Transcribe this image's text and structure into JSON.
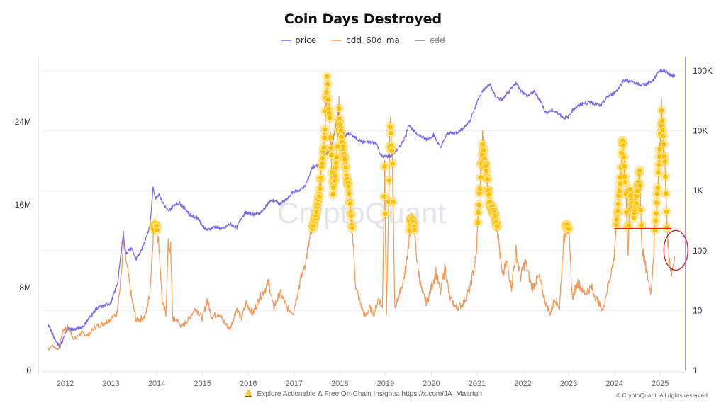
{
  "header": {
    "title": "Coin Days Destroyed"
  },
  "legend": [
    {
      "label": "price",
      "color": "#7b68ee",
      "enabled": true
    },
    {
      "label": "cdd_60d_ma",
      "color": "#f0995a",
      "enabled": true
    },
    {
      "label": "cdd",
      "color": "#999999",
      "enabled": false
    }
  ],
  "watermark": "CryptoQuant",
  "footer": {
    "cta_text": "Explore Actionable & Free On-Chain Insights:",
    "cta_link": "https://x.com/JA_Maartun",
    "copyright": "© CryptoQuant. All rights reserved"
  },
  "chart_data": {
    "type": "line",
    "title": "Coin Days Destroyed",
    "xlabel": "",
    "x_ticks": [
      "2012",
      "2013",
      "2014",
      "2015",
      "2016",
      "2017",
      "2018",
      "2019",
      "2020",
      "2021",
      "2022",
      "2023",
      "2024",
      "2025"
    ],
    "x_range": [
      2011.5,
      2025.4
    ],
    "y_left": {
      "label": "cdd_60d_ma",
      "ticks": [
        "0",
        "8M",
        "16M",
        "24M"
      ],
      "tick_values": [
        0,
        8000000,
        16000000,
        24000000
      ],
      "range": [
        0,
        28800000
      ],
      "scale": "linear"
    },
    "y_right": {
      "label": "price",
      "ticks": [
        "1",
        "10",
        "100",
        "1K",
        "10K",
        "100K"
      ],
      "tick_values": [
        1,
        10,
        100,
        1000,
        10000,
        100000
      ],
      "range": [
        1,
        100000
      ],
      "scale": "log"
    },
    "grid": true,
    "legend_position": "top-center",
    "series": [
      {
        "name": "price",
        "axis": "right",
        "color": "#7b68ee",
        "points": [
          [
            2011.62,
            6
          ],
          [
            2011.7,
            4.5
          ],
          [
            2011.8,
            3
          ],
          [
            2011.88,
            2.5
          ],
          [
            2011.95,
            3.2
          ],
          [
            2012.05,
            5
          ],
          [
            2012.2,
            4.8
          ],
          [
            2012.4,
            5.5
          ],
          [
            2012.55,
            8
          ],
          [
            2012.7,
            11
          ],
          [
            2012.85,
            12
          ],
          [
            2013.0,
            13.5
          ],
          [
            2013.15,
            30
          ],
          [
            2013.27,
            200
          ],
          [
            2013.32,
            90
          ],
          [
            2013.45,
            110
          ],
          [
            2013.55,
            70
          ],
          [
            2013.7,
            120
          ],
          [
            2013.85,
            250
          ],
          [
            2013.92,
            1100
          ],
          [
            2013.98,
            750
          ],
          [
            2014.05,
            900
          ],
          [
            2014.12,
            650
          ],
          [
            2014.25,
            450
          ],
          [
            2014.4,
            600
          ],
          [
            2014.5,
            620
          ],
          [
            2014.62,
            500
          ],
          [
            2014.75,
            380
          ],
          [
            2014.9,
            350
          ],
          [
            2015.0,
            260
          ],
          [
            2015.1,
            220
          ],
          [
            2015.25,
            250
          ],
          [
            2015.45,
            230
          ],
          [
            2015.6,
            280
          ],
          [
            2015.75,
            240
          ],
          [
            2015.85,
            360
          ],
          [
            2015.95,
            430
          ],
          [
            2016.1,
            400
          ],
          [
            2016.3,
            440
          ],
          [
            2016.45,
            650
          ],
          [
            2016.55,
            680
          ],
          [
            2016.7,
            600
          ],
          [
            2016.85,
            720
          ],
          [
            2016.98,
            960
          ],
          [
            2017.1,
            1000
          ],
          [
            2017.25,
            1200
          ],
          [
            2017.4,
            2500
          ],
          [
            2017.55,
            2600
          ],
          [
            2017.65,
            4300
          ],
          [
            2017.75,
            4200
          ],
          [
            2017.85,
            7000
          ],
          [
            2017.96,
            19000
          ],
          [
            2018.05,
            11000
          ],
          [
            2018.1,
            8000
          ],
          [
            2018.2,
            9000
          ],
          [
            2018.35,
            7500
          ],
          [
            2018.5,
            6500
          ],
          [
            2018.65,
            6400
          ],
          [
            2018.8,
            6300
          ],
          [
            2018.9,
            3800
          ],
          [
            2018.98,
            3700
          ],
          [
            2019.1,
            3800
          ],
          [
            2019.3,
            5200
          ],
          [
            2019.45,
            8500
          ],
          [
            2019.5,
            13000
          ],
          [
            2019.6,
            10000
          ],
          [
            2019.75,
            8200
          ],
          [
            2019.9,
            7200
          ],
          [
            2020.05,
            8500
          ],
          [
            2020.2,
            5200
          ],
          [
            2020.35,
            9000
          ],
          [
            2020.55,
            9300
          ],
          [
            2020.7,
            11000
          ],
          [
            2020.85,
            15000
          ],
          [
            2021.0,
            30000
          ],
          [
            2021.1,
            45000
          ],
          [
            2021.28,
            60000
          ],
          [
            2021.4,
            37000
          ],
          [
            2021.55,
            33000
          ],
          [
            2021.7,
            45000
          ],
          [
            2021.85,
            63000
          ],
          [
            2021.96,
            47000
          ],
          [
            2022.1,
            38000
          ],
          [
            2022.25,
            45000
          ],
          [
            2022.4,
            30000
          ],
          [
            2022.5,
            20000
          ],
          [
            2022.65,
            22000
          ],
          [
            2022.8,
            19000
          ],
          [
            2022.9,
            16500
          ],
          [
            2022.98,
            16600
          ],
          [
            2023.1,
            23000
          ],
          [
            2023.28,
            28000
          ],
          [
            2023.5,
            30000
          ],
          [
            2023.7,
            26000
          ],
          [
            2023.85,
            37000
          ],
          [
            2023.98,
            42000
          ],
          [
            2024.1,
            52000
          ],
          [
            2024.2,
            70000
          ],
          [
            2024.4,
            65000
          ],
          [
            2024.55,
            58000
          ],
          [
            2024.7,
            60000
          ],
          [
            2024.85,
            70000
          ],
          [
            2024.95,
            97000
          ],
          [
            2025.05,
            102000
          ],
          [
            2025.15,
            96000
          ],
          [
            2025.25,
            82000
          ],
          [
            2025.32,
            86000
          ]
        ]
      },
      {
        "name": "cdd_60d_ma",
        "axis": "left",
        "color": "#f0995a",
        "points": [
          [
            2011.62,
            2000000
          ],
          [
            2011.72,
            2400000
          ],
          [
            2011.85,
            2000000
          ],
          [
            2011.95,
            3800000
          ],
          [
            2012.05,
            4200000
          ],
          [
            2012.2,
            3000000
          ],
          [
            2012.35,
            3600000
          ],
          [
            2012.5,
            3400000
          ],
          [
            2012.65,
            4200000
          ],
          [
            2012.85,
            4600000
          ],
          [
            2013.0,
            5000000
          ],
          [
            2013.12,
            5500000
          ],
          [
            2013.2,
            8000000
          ],
          [
            2013.28,
            12300000
          ],
          [
            2013.35,
            10000000
          ],
          [
            2013.45,
            7000000
          ],
          [
            2013.55,
            4800000
          ],
          [
            2013.65,
            5000000
          ],
          [
            2013.75,
            5200000
          ],
          [
            2013.85,
            7500000
          ],
          [
            2013.93,
            13800000
          ],
          [
            2013.98,
            14200000
          ],
          [
            2014.05,
            12000000
          ],
          [
            2014.12,
            6500000
          ],
          [
            2014.2,
            5500000
          ],
          [
            2014.25,
            12000000
          ],
          [
            2014.3,
            11800000
          ],
          [
            2014.35,
            5000000
          ],
          [
            2014.45,
            4800000
          ],
          [
            2014.55,
            4200000
          ],
          [
            2014.7,
            5000000
          ],
          [
            2014.85,
            6000000
          ],
          [
            2015.0,
            5000000
          ],
          [
            2015.1,
            6800000
          ],
          [
            2015.2,
            5200000
          ],
          [
            2015.35,
            5500000
          ],
          [
            2015.5,
            4500000
          ],
          [
            2015.6,
            4000000
          ],
          [
            2015.75,
            6000000
          ],
          [
            2015.85,
            5000000
          ],
          [
            2015.95,
            6500000
          ],
          [
            2016.1,
            5500000
          ],
          [
            2016.25,
            7000000
          ],
          [
            2016.45,
            8500000
          ],
          [
            2016.55,
            6000000
          ],
          [
            2016.7,
            7500000
          ],
          [
            2016.85,
            6000000
          ],
          [
            2016.98,
            5600000
          ],
          [
            2017.1,
            8000000
          ],
          [
            2017.25,
            10500000
          ],
          [
            2017.35,
            12800000
          ],
          [
            2017.45,
            14500000
          ],
          [
            2017.55,
            17000000
          ],
          [
            2017.65,
            21500000
          ],
          [
            2017.72,
            28000000
          ],
          [
            2017.78,
            24000000
          ],
          [
            2017.85,
            17000000
          ],
          [
            2017.92,
            20000000
          ],
          [
            2017.98,
            25000000
          ],
          [
            2018.05,
            22000000
          ],
          [
            2018.12,
            20000000
          ],
          [
            2018.2,
            17000000
          ],
          [
            2018.28,
            13000000
          ],
          [
            2018.35,
            8000000
          ],
          [
            2018.45,
            6500000
          ],
          [
            2018.55,
            5200000
          ],
          [
            2018.65,
            6000000
          ],
          [
            2018.75,
            5500000
          ],
          [
            2018.85,
            7000000
          ],
          [
            2018.93,
            6000000
          ],
          [
            2018.98,
            20000000
          ],
          [
            2019.02,
            5500000
          ],
          [
            2019.1,
            24000000
          ],
          [
            2019.15,
            20000000
          ],
          [
            2019.2,
            6000000
          ],
          [
            2019.35,
            8000000
          ],
          [
            2019.45,
            10000000
          ],
          [
            2019.55,
            14500000
          ],
          [
            2019.62,
            14000000
          ],
          [
            2019.7,
            10000000
          ],
          [
            2019.8,
            7500000
          ],
          [
            2019.9,
            6500000
          ],
          [
            2020.0,
            8000000
          ],
          [
            2020.1,
            9500000
          ],
          [
            2020.2,
            7500000
          ],
          [
            2020.3,
            10000000
          ],
          [
            2020.4,
            7000000
          ],
          [
            2020.55,
            6000000
          ],
          [
            2020.7,
            6500000
          ],
          [
            2020.85,
            8000000
          ],
          [
            2020.98,
            11000000
          ],
          [
            2021.05,
            17000000
          ],
          [
            2021.12,
            22000000
          ],
          [
            2021.2,
            19000000
          ],
          [
            2021.28,
            16000000
          ],
          [
            2021.38,
            15000000
          ],
          [
            2021.45,
            13500000
          ],
          [
            2021.55,
            9000000
          ],
          [
            2021.65,
            10500000
          ],
          [
            2021.75,
            8000000
          ],
          [
            2021.85,
            11500000
          ],
          [
            2021.95,
            9000000
          ],
          [
            2022.05,
            10500000
          ],
          [
            2022.2,
            8000000
          ],
          [
            2022.35,
            9000000
          ],
          [
            2022.5,
            6500000
          ],
          [
            2022.6,
            5500000
          ],
          [
            2022.7,
            7000000
          ],
          [
            2022.8,
            6000000
          ],
          [
            2022.88,
            12000000
          ],
          [
            2022.95,
            14000000
          ],
          [
            2023.0,
            13500000
          ],
          [
            2023.08,
            7000000
          ],
          [
            2023.2,
            8500000
          ],
          [
            2023.35,
            7500000
          ],
          [
            2023.5,
            8000000
          ],
          [
            2023.65,
            6500000
          ],
          [
            2023.75,
            5800000
          ],
          [
            2023.85,
            8000000
          ],
          [
            2023.98,
            10500000
          ],
          [
            2024.05,
            14500000
          ],
          [
            2024.12,
            18000000
          ],
          [
            2024.18,
            22500000
          ],
          [
            2024.25,
            17000000
          ],
          [
            2024.3,
            10500000
          ],
          [
            2024.33,
            17500000
          ],
          [
            2024.42,
            15000000
          ],
          [
            2024.5,
            17000000
          ],
          [
            2024.55,
            19500000
          ],
          [
            2024.6,
            12000000
          ],
          [
            2024.68,
            10000000
          ],
          [
            2024.8,
            7500000
          ],
          [
            2024.9,
            14500000
          ],
          [
            2024.98,
            20500000
          ],
          [
            2025.03,
            25000000
          ],
          [
            2025.1,
            20000000
          ],
          [
            2025.15,
            14000000
          ],
          [
            2025.2,
            10500000
          ],
          [
            2025.25,
            9500000
          ],
          [
            2025.3,
            10500000
          ],
          [
            2025.32,
            11000000
          ]
        ]
      }
    ],
    "highlight_threshold": {
      "description": "marker bubbles shown where cdd_60d_ma exceeds threshold",
      "value": 13500000,
      "color": "#ffc107"
    },
    "annotations": [
      {
        "type": "horizontal-line",
        "color": "#e02020",
        "x_range": [
          2024.0,
          2025.25
        ],
        "y_value": 13700000,
        "axis": "left"
      },
      {
        "type": "ellipse",
        "color": "#d01010",
        "center_x": 2025.28,
        "center_y": 11600000,
        "axis": "left"
      }
    ]
  }
}
